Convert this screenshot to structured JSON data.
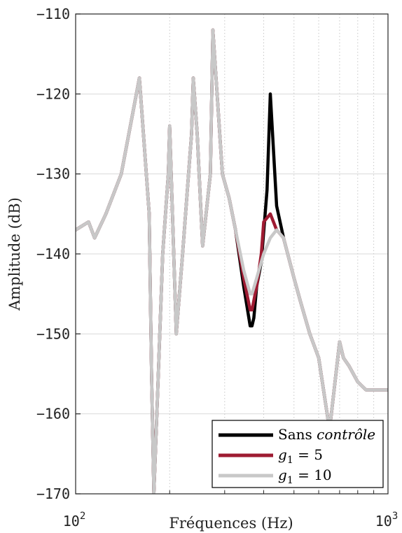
{
  "chart_data": {
    "type": "line",
    "xlabel": "Fréquences (Hz)",
    "ylabel": "Amplitude (dB)",
    "xscale": "log",
    "xlim": [
      100,
      1000
    ],
    "ylim": [
      -170,
      -110
    ],
    "grid": true,
    "legend_position": "bottom-right",
    "xticks": [
      {
        "value": 100,
        "label_base": "10",
        "label_exp": "2"
      },
      {
        "value": 1000,
        "label_base": "10",
        "label_exp": "3"
      }
    ],
    "yticks": [
      {
        "value": -110,
        "label": "−110"
      },
      {
        "value": -120,
        "label": "−120"
      },
      {
        "value": -130,
        "label": "−130"
      },
      {
        "value": -140,
        "label": "−140"
      },
      {
        "value": -150,
        "label": "−150"
      },
      {
        "value": -160,
        "label": "−160"
      },
      {
        "value": -170,
        "label": "−170"
      }
    ],
    "series": [
      {
        "name": "Sans contrôle",
        "legend_plain": "Sans ",
        "legend_italic": "contrôle",
        "color": "#000000",
        "x": [
          100,
          110,
          115,
          125,
          140,
          160,
          172,
          175,
          178,
          182,
          190,
          198,
          200,
          210,
          220,
          235,
          238,
          245,
          255,
          270,
          275,
          295,
          310,
          325,
          345,
          362,
          367,
          372,
          380,
          393,
          410,
          420,
          440,
          463,
          500,
          525,
          562,
          600,
          650,
          700,
          720,
          750,
          800,
          850,
          900,
          1000
        ],
        "y": [
          -137,
          -136,
          -138,
          -135,
          -130,
          -118,
          -135,
          -155,
          -170,
          -160,
          -140,
          -130,
          -124,
          -150,
          -140,
          -125,
          -118,
          -125,
          -139,
          -130,
          -112,
          -130,
          -133,
          -137,
          -144,
          -149,
          -149,
          -148,
          -144,
          -141,
          -132,
          -120,
          -134,
          -138,
          -143,
          -146,
          -150,
          -153,
          -162,
          -151,
          -153,
          -154,
          -156,
          -157,
          -157,
          -157
        ]
      },
      {
        "name": "g₁ = 5",
        "legend_var": "g",
        "legend_sub": "1",
        "legend_rest": " = 5",
        "color": "#9e1b32",
        "x": [
          100,
          110,
          115,
          125,
          140,
          160,
          172,
          175,
          178,
          182,
          190,
          198,
          200,
          210,
          220,
          235,
          238,
          245,
          255,
          270,
          275,
          295,
          310,
          325,
          345,
          362,
          367,
          380,
          393,
          400,
          420,
          440,
          463,
          500,
          525,
          562,
          600,
          650,
          700,
          720,
          750,
          800,
          850,
          900,
          1000
        ],
        "y": [
          -137,
          -136,
          -138,
          -135,
          -130,
          -118,
          -135,
          -155,
          -170,
          -160,
          -140,
          -130,
          -124,
          -150,
          -140,
          -125,
          -118,
          -125,
          -139,
          -130,
          -112,
          -130,
          -133,
          -137,
          -143,
          -147,
          -147,
          -144,
          -140,
          -136,
          -135,
          -137,
          -138,
          -143,
          -146,
          -150,
          -153,
          -162,
          -151,
          -153,
          -154,
          -156,
          -157,
          -157,
          -157
        ]
      },
      {
        "name": "g₁ = 10",
        "legend_var": "g",
        "legend_sub": "1",
        "legend_rest": " = 10",
        "color": "#c8c8c8",
        "x": [
          100,
          110,
          115,
          125,
          140,
          160,
          172,
          175,
          178,
          182,
          190,
          198,
          200,
          210,
          220,
          235,
          238,
          245,
          255,
          270,
          275,
          295,
          310,
          325,
          345,
          362,
          367,
          380,
          393,
          400,
          420,
          440,
          463,
          500,
          525,
          562,
          600,
          650,
          700,
          720,
          750,
          800,
          850,
          900,
          1000
        ],
        "y": [
          -137,
          -136,
          -138,
          -135,
          -130,
          -118,
          -135,
          -155,
          -170,
          -160,
          -140,
          -130,
          -124,
          -150,
          -140,
          -125,
          -118,
          -125,
          -139,
          -130,
          -112,
          -130,
          -133,
          -137,
          -142,
          -145,
          -145,
          -143,
          -141,
          -140,
          -138,
          -137,
          -138,
          -143,
          -146,
          -150,
          -153,
          -162,
          -151,
          -153,
          -154,
          -156,
          -157,
          -157,
          -157
        ]
      }
    ]
  }
}
